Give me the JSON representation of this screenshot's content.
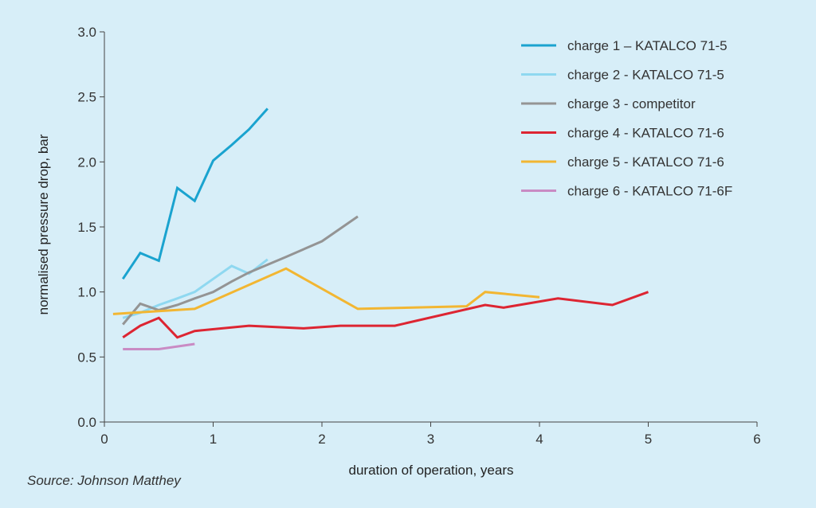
{
  "source": "Source: Johnson Matthey",
  "chart_data": {
    "type": "line",
    "title": "",
    "xlabel": "duration of operation, years",
    "ylabel": "normalised pressure drop, bar",
    "xlim": [
      0,
      6
    ],
    "ylim": [
      0,
      3
    ],
    "xticks": [
      0,
      1,
      2,
      3,
      4,
      5,
      6
    ],
    "xtick_labels": [
      "0",
      "1",
      "2",
      "3",
      "4",
      "5",
      "6"
    ],
    "yticks": [
      0,
      0.5,
      1,
      1.5,
      2,
      2.5,
      3
    ],
    "ytick_labels": [
      "0.0",
      "0.5",
      "1.0",
      "1.5",
      "2.0",
      "2.5",
      "3.0"
    ],
    "grid": false,
    "legend": "top-right",
    "series": [
      {
        "name": "charge 1 – KATALCO 71-5",
        "color": "#1aa3cf",
        "points": [
          [
            0.17,
            1.1
          ],
          [
            0.33,
            1.3
          ],
          [
            0.5,
            1.24
          ],
          [
            0.67,
            1.8
          ],
          [
            0.83,
            1.7
          ],
          [
            1.0,
            2.01
          ],
          [
            1.17,
            2.13
          ],
          [
            1.33,
            2.25
          ],
          [
            1.5,
            2.41
          ]
        ]
      },
      {
        "name": "charge 2 - KATALCO 71-5",
        "color": "#8fd8f0",
        "points": [
          [
            0.17,
            0.8
          ],
          [
            0.33,
            0.84
          ],
          [
            0.5,
            0.9
          ],
          [
            0.67,
            0.95
          ],
          [
            0.83,
            1.0
          ],
          [
            1.0,
            1.1
          ],
          [
            1.17,
            1.2
          ],
          [
            1.33,
            1.14
          ],
          [
            1.5,
            1.25
          ]
        ]
      },
      {
        "name": "charge 3 - competitor",
        "color": "#949494",
        "points": [
          [
            0.17,
            0.75
          ],
          [
            0.33,
            0.91
          ],
          [
            0.5,
            0.86
          ],
          [
            0.67,
            0.9
          ],
          [
            0.83,
            0.95
          ],
          [
            1.0,
            1.0
          ],
          [
            1.17,
            1.08
          ],
          [
            1.33,
            1.15
          ],
          [
            1.67,
            1.27
          ],
          [
            2.0,
            1.39
          ],
          [
            2.33,
            1.58
          ]
        ]
      },
      {
        "name": "charge 4 - KATALCO 71-6",
        "color": "#dd2532",
        "points": [
          [
            0.17,
            0.65
          ],
          [
            0.33,
            0.74
          ],
          [
            0.5,
            0.8
          ],
          [
            0.67,
            0.65
          ],
          [
            0.83,
            0.7
          ],
          [
            1.33,
            0.74
          ],
          [
            1.83,
            0.72
          ],
          [
            2.17,
            0.74
          ],
          [
            2.67,
            0.74
          ],
          [
            3.5,
            0.9
          ],
          [
            3.67,
            0.88
          ],
          [
            4.17,
            0.95
          ],
          [
            4.67,
            0.9
          ],
          [
            5.0,
            1.0
          ]
        ]
      },
      {
        "name": "charge 5 - KATALCO 71-6",
        "color": "#f2b632",
        "points": [
          [
            0.08,
            0.83
          ],
          [
            0.83,
            0.87
          ],
          [
            1.67,
            1.18
          ],
          [
            2.33,
            0.87
          ],
          [
            3.33,
            0.89
          ],
          [
            3.5,
            1.0
          ],
          [
            4.0,
            0.96
          ]
        ]
      },
      {
        "name": "charge 6 - KATALCO 71-6F",
        "color": "#c98bc4",
        "points": [
          [
            0.17,
            0.56
          ],
          [
            0.5,
            0.56
          ],
          [
            0.83,
            0.6
          ]
        ]
      }
    ]
  }
}
